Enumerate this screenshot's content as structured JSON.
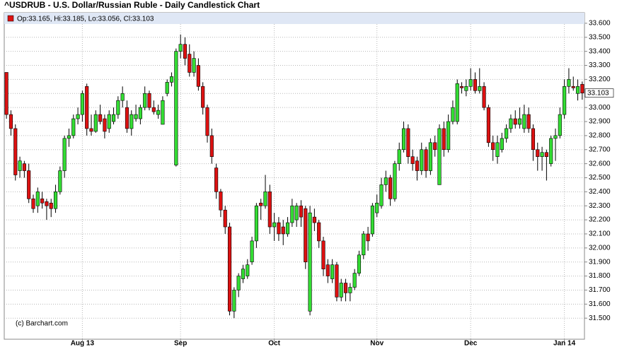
{
  "chart_data": {
    "type": "candlestick",
    "title": "^USDRUB - U.S. Dollar/Russian Ruble - Daily Candlestick Chart",
    "legend": "Op:33.165, Hi:33.185, Lo:33.056, Cl:33.103",
    "watermark": "(c) Barchart.com",
    "last_price_label": "33.103",
    "up_color": "#33dd33",
    "down_color": "#dd1111",
    "grid": true,
    "ylim": [
      31.35,
      33.675
    ],
    "yticks": [
      {
        "value": 31.5,
        "label": "31.500"
      },
      {
        "value": 31.6,
        "label": "31.600"
      },
      {
        "value": 31.7,
        "label": "31.700"
      },
      {
        "value": 31.8,
        "label": "31.800"
      },
      {
        "value": 31.9,
        "label": "31.900"
      },
      {
        "value": 32.0,
        "label": "32.000"
      },
      {
        "value": 32.1,
        "label": "32.100"
      },
      {
        "value": 32.2,
        "label": "32.200"
      },
      {
        "value": 32.3,
        "label": "32.300"
      },
      {
        "value": 32.4,
        "label": "32.400"
      },
      {
        "value": 32.5,
        "label": "32.500"
      },
      {
        "value": 32.6,
        "label": "32.600"
      },
      {
        "value": 32.7,
        "label": "32.700"
      },
      {
        "value": 32.8,
        "label": "32.800"
      },
      {
        "value": 32.9,
        "label": "32.900"
      },
      {
        "value": 33.0,
        "label": "33.000"
      },
      {
        "value": 33.1,
        "label": "33.100"
      },
      {
        "value": 33.2,
        "label": "33.200"
      },
      {
        "value": 33.3,
        "label": "33.300"
      },
      {
        "value": 33.4,
        "label": "33.400"
      },
      {
        "value": 33.5,
        "label": "33.500"
      },
      {
        "value": 33.6,
        "label": "33.600"
      }
    ],
    "categories": [
      null,
      null,
      null,
      null,
      null,
      null,
      null,
      null,
      null,
      null,
      null,
      null,
      null,
      null,
      null,
      null,
      null,
      "Aug 13",
      null,
      null,
      null,
      null,
      null,
      null,
      null,
      null,
      null,
      null,
      null,
      null,
      null,
      null,
      null,
      null,
      null,
      null,
      null,
      null,
      null,
      "Sep",
      null,
      null,
      null,
      null,
      null,
      null,
      null,
      null,
      null,
      null,
      null,
      null,
      null,
      null,
      null,
      null,
      null,
      null,
      null,
      null,
      "Oct",
      null,
      null,
      null,
      null,
      null,
      null,
      null,
      null,
      null,
      null,
      null,
      null,
      null,
      null,
      null,
      null,
      null,
      null,
      null,
      null,
      null,
      null,
      "Nov",
      null,
      null,
      null,
      null,
      null,
      null,
      null,
      null,
      null,
      null,
      null,
      null,
      null,
      null,
      null,
      null,
      null,
      null,
      null,
      null,
      "Dec",
      null,
      null,
      null,
      null,
      null,
      null,
      null,
      null,
      null,
      null,
      null,
      null,
      null,
      null,
      null,
      null,
      null,
      null,
      null,
      null,
      "Jan 14",
      null,
      null,
      null,
      null
    ],
    "candles": [
      [
        33.25,
        33.25,
        32.92,
        32.95
      ],
      [
        32.95,
        32.98,
        32.8,
        32.85
      ],
      [
        32.85,
        32.88,
        32.48,
        32.52
      ],
      [
        32.55,
        32.65,
        32.5,
        32.62
      ],
      [
        32.6,
        32.62,
        32.5,
        32.55
      ],
      [
        32.55,
        32.6,
        32.32,
        32.35
      ],
      [
        32.35,
        32.38,
        32.25,
        32.28
      ],
      [
        32.3,
        32.43,
        32.25,
        32.4
      ],
      [
        32.35,
        32.4,
        32.28,
        32.32
      ],
      [
        32.33,
        32.35,
        32.2,
        32.3
      ],
      [
        32.32,
        32.35,
        32.22,
        32.28
      ],
      [
        32.28,
        32.45,
        32.25,
        32.4
      ],
      [
        32.4,
        32.58,
        32.38,
        32.55
      ],
      [
        32.55,
        32.8,
        32.5,
        32.78
      ],
      [
        32.78,
        32.85,
        32.72,
        32.8
      ],
      [
        32.8,
        32.95,
        32.78,
        32.92
      ],
      [
        32.92,
        33.0,
        32.88,
        32.95
      ],
      [
        32.95,
        33.12,
        32.9,
        33.1
      ],
      [
        33.15,
        33.17,
        32.8,
        32.85
      ],
      [
        32.85,
        32.95,
        32.8,
        32.83
      ],
      [
        32.83,
        32.98,
        32.82,
        32.95
      ],
      [
        32.95,
        33.02,
        32.88,
        32.9
      ],
      [
        32.92,
        32.95,
        32.78,
        32.83
      ],
      [
        32.85,
        32.98,
        32.82,
        32.95
      ],
      [
        32.9,
        33.0,
        32.88,
        32.95
      ],
      [
        32.95,
        33.08,
        32.92,
        33.05
      ],
      [
        33.05,
        33.15,
        33.0,
        33.1
      ],
      [
        33.0,
        33.05,
        32.82,
        32.85
      ],
      [
        32.85,
        32.98,
        32.8,
        32.95
      ],
      [
        32.92,
        33.02,
        32.9,
        32.95
      ],
      [
        32.92,
        33.02,
        32.88,
        33.0
      ],
      [
        33.0,
        33.15,
        32.98,
        33.1
      ],
      [
        33.1,
        33.12,
        32.98,
        33.0
      ],
      [
        33.0,
        33.05,
        32.95,
        32.97
      ],
      [
        32.95,
        33.02,
        32.92,
        32.98
      ],
      [
        32.88,
        33.08,
        32.88,
        33.05
      ],
      [
        33.1,
        33.2,
        33.08,
        33.18
      ],
      [
        33.18,
        33.25,
        33.15,
        33.22
      ],
      [
        32.59,
        33.42,
        32.58,
        33.4
      ],
      [
        33.4,
        33.52,
        33.35,
        33.45
      ],
      [
        33.45,
        33.5,
        33.3,
        33.35
      ],
      [
        33.38,
        33.45,
        33.22,
        33.25
      ],
      [
        33.25,
        33.4,
        33.22,
        33.35
      ],
      [
        33.3,
        33.35,
        33.12,
        33.15
      ],
      [
        33.15,
        33.18,
        32.95,
        33.0
      ],
      [
        33.0,
        33.02,
        32.75,
        32.8
      ],
      [
        32.8,
        32.85,
        32.6,
        32.65
      ],
      [
        32.57,
        32.6,
        32.35,
        32.4
      ],
      [
        32.4,
        32.42,
        32.22,
        32.27
      ],
      [
        32.27,
        32.3,
        32.1,
        32.15
      ],
      [
        32.15,
        32.18,
        31.52,
        31.55
      ],
      [
        31.55,
        31.72,
        31.5,
        31.7
      ],
      [
        31.7,
        31.82,
        31.65,
        31.8
      ],
      [
        31.78,
        31.88,
        31.75,
        31.85
      ],
      [
        31.8,
        31.92,
        31.78,
        31.88
      ],
      [
        31.9,
        32.08,
        31.88,
        32.05
      ],
      [
        32.05,
        32.32,
        32.0,
        32.3
      ],
      [
        32.32,
        32.35,
        32.2,
        32.3
      ],
      [
        32.3,
        32.52,
        32.28,
        32.4
      ],
      [
        32.4,
        32.45,
        32.1,
        32.15
      ],
      [
        32.15,
        32.25,
        32.05,
        32.18
      ],
      [
        32.18,
        32.22,
        32.05,
        32.1
      ],
      [
        32.15,
        32.2,
        32.02,
        32.1
      ],
      [
        32.1,
        32.22,
        32.08,
        32.18
      ],
      [
        32.18,
        32.35,
        32.15,
        32.3
      ],
      [
        32.2,
        32.32,
        32.15,
        32.3
      ],
      [
        32.3,
        32.34,
        32.15,
        32.22
      ],
      [
        32.28,
        32.3,
        31.85,
        31.9
      ],
      [
        31.55,
        32.3,
        31.52,
        32.25
      ],
      [
        32.22,
        32.28,
        32.12,
        32.18
      ],
      [
        32.18,
        32.2,
        32.0,
        32.05
      ],
      [
        32.05,
        32.08,
        31.8,
        31.85
      ],
      [
        31.88,
        31.92,
        31.75,
        31.8
      ],
      [
        31.78,
        31.92,
        31.75,
        31.88
      ],
      [
        31.88,
        31.9,
        31.62,
        31.65
      ],
      [
        31.65,
        31.78,
        31.62,
        31.75
      ],
      [
        31.75,
        31.78,
        31.62,
        31.68
      ],
      [
        31.68,
        31.75,
        31.62,
        31.72
      ],
      [
        31.72,
        31.85,
        31.7,
        31.82
      ],
      [
        31.82,
        31.98,
        31.8,
        31.95
      ],
      [
        31.95,
        32.12,
        31.92,
        32.1
      ],
      [
        32.1,
        32.15,
        31.98,
        32.05
      ],
      [
        32.1,
        32.32,
        32.08,
        32.3
      ],
      [
        32.25,
        32.38,
        32.22,
        32.32
      ],
      [
        32.3,
        32.5,
        32.28,
        32.45
      ],
      [
        32.45,
        32.55,
        32.4,
        32.5
      ],
      [
        32.5,
        32.52,
        32.3,
        32.35
      ],
      [
        32.35,
        32.62,
        32.33,
        32.6
      ],
      [
        32.6,
        32.75,
        32.55,
        32.7
      ],
      [
        32.7,
        32.9,
        32.68,
        32.85
      ],
      [
        32.85,
        32.88,
        32.6,
        32.65
      ],
      [
        32.65,
        32.7,
        32.55,
        32.6
      ],
      [
        32.62,
        32.65,
        32.48,
        32.55
      ],
      [
        32.55,
        32.75,
        32.52,
        32.7
      ],
      [
        32.7,
        32.72,
        32.5,
        32.55
      ],
      [
        32.55,
        32.78,
        32.52,
        32.75
      ],
      [
        32.75,
        32.8,
        32.65,
        32.7
      ],
      [
        32.45,
        32.88,
        32.45,
        32.85
      ],
      [
        32.85,
        32.9,
        32.65,
        32.7
      ],
      [
        32.7,
        32.95,
        32.68,
        32.9
      ],
      [
        32.9,
        33.05,
        32.88,
        33.0
      ],
      [
        32.9,
        33.2,
        32.88,
        33.17
      ],
      [
        33.15,
        33.18,
        33.1,
        33.14
      ],
      [
        33.12,
        33.2,
        33.08,
        33.15
      ],
      [
        33.15,
        33.28,
        33.12,
        33.2
      ],
      [
        33.2,
        33.25,
        33.1,
        33.12
      ],
      [
        33.12,
        33.28,
        33.1,
        33.15
      ],
      [
        33.15,
        33.18,
        32.98,
        33.0
      ],
      [
        33.0,
        33.02,
        32.72,
        32.75
      ],
      [
        32.75,
        32.8,
        32.62,
        32.7
      ],
      [
        32.65,
        32.8,
        32.6,
        32.75
      ],
      [
        32.7,
        32.82,
        32.68,
        32.78
      ],
      [
        32.78,
        32.88,
        32.75,
        32.85
      ],
      [
        32.85,
        32.95,
        32.82,
        32.92
      ],
      [
        32.92,
        32.98,
        32.85,
        32.88
      ],
      [
        32.88,
        33.0,
        32.85,
        32.92
      ],
      [
        32.85,
        33.02,
        32.82,
        32.95
      ],
      [
        32.95,
        33.0,
        32.82,
        32.85
      ],
      [
        32.85,
        32.88,
        32.62,
        32.7
      ],
      [
        32.7,
        32.75,
        32.55,
        32.65
      ],
      [
        32.65,
        32.72,
        32.55,
        32.68
      ],
      [
        32.68,
        32.7,
        32.48,
        32.65
      ],
      [
        32.6,
        32.8,
        32.58,
        32.78
      ],
      [
        32.78,
        32.85,
        32.62,
        32.8
      ],
      [
        32.8,
        33.0,
        32.78,
        32.95
      ],
      [
        32.95,
        33.2,
        32.92,
        33.15
      ],
      [
        33.15,
        33.28,
        33.1,
        33.2
      ],
      [
        33.15,
        33.22,
        33.12,
        33.14
      ],
      [
        33.1,
        33.2,
        33.05,
        33.15
      ],
      [
        33.165,
        33.185,
        33.056,
        33.103
      ]
    ]
  }
}
